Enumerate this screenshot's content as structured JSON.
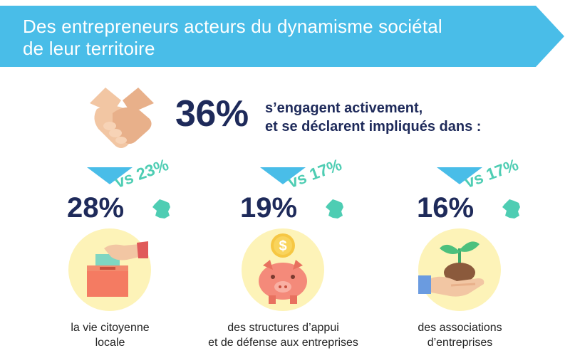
{
  "banner": {
    "title_line1": "Des entrepreneurs acteurs du dynamisme sociétal",
    "title_line2": "de leur territoire",
    "color": "#49bde8"
  },
  "headline": {
    "percent": "36%",
    "line1": "s’engagent activement,",
    "line2": "et se déclarent impliqués dans :",
    "icon": "handshake-icon"
  },
  "items": [
    {
      "percent": "28%",
      "comparison": "vs 23%",
      "caption_line1": "la vie citoyenne",
      "caption_line2": "locale",
      "icon": "ballot-box-icon"
    },
    {
      "percent": "19%",
      "comparison": "vs 17%",
      "caption_line1": "des structures d’appui",
      "caption_line2": "et de défense aux entreprises",
      "icon": "piggy-bank-icon"
    },
    {
      "percent": "16%",
      "comparison": "vs 17%",
      "caption_line1": "des associations",
      "caption_line2": "d’entreprises",
      "icon": "plant-in-hand-icon"
    }
  ],
  "colors": {
    "navy": "#1e2a5a",
    "teal": "#4ecdb3",
    "blue": "#49bde8",
    "circle": "#fdf3b8"
  }
}
